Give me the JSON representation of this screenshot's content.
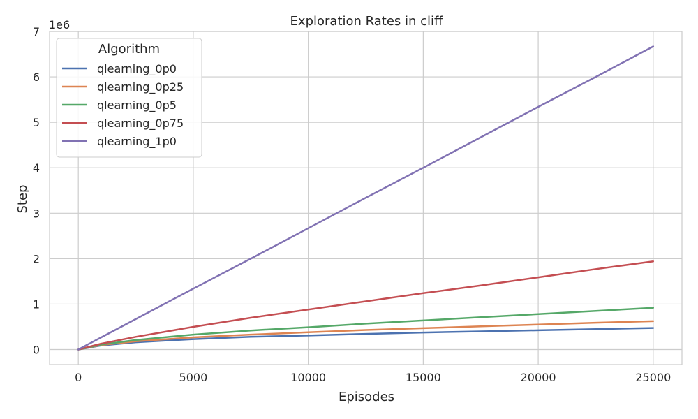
{
  "chart_data": {
    "type": "line",
    "title": "Exploration Rates in cliff",
    "xlabel": "Episodes",
    "ylabel": "Step",
    "y_offset_text": "1e6",
    "xlim": [
      -1250,
      26250
    ],
    "ylim": [
      -0.33,
      7.0
    ],
    "x_ticks": [
      0,
      5000,
      10000,
      15000,
      20000,
      25000
    ],
    "x_tick_labels": [
      "0",
      "5000",
      "10000",
      "15000",
      "20000",
      "25000"
    ],
    "y_ticks": [
      0,
      1,
      2,
      3,
      4,
      5,
      6,
      7
    ],
    "y_tick_labels": [
      "0",
      "1",
      "2",
      "3",
      "4",
      "5",
      "6",
      "7"
    ],
    "grid": true,
    "legend": {
      "title": "Algorithm",
      "placement": "top-left"
    },
    "x": [
      0,
      1000,
      2500,
      5000,
      7500,
      10000,
      12500,
      15000,
      17500,
      20000,
      22500,
      25000
    ],
    "series": [
      {
        "name": "qlearning_0p0",
        "color": "#4c72b0",
        "values": [
          0,
          0.09,
          0.16,
          0.23,
          0.28,
          0.31,
          0.345,
          0.375,
          0.4,
          0.425,
          0.45,
          0.475
        ]
      },
      {
        "name": "qlearning_0p25",
        "color": "#dd8452",
        "values": [
          0,
          0.1,
          0.18,
          0.27,
          0.33,
          0.38,
          0.43,
          0.47,
          0.51,
          0.55,
          0.59,
          0.625
        ]
      },
      {
        "name": "qlearning_0p5",
        "color": "#55a868",
        "values": [
          0,
          0.11,
          0.21,
          0.33,
          0.42,
          0.49,
          0.57,
          0.64,
          0.71,
          0.78,
          0.85,
          0.92
        ]
      },
      {
        "name": "qlearning_0p75",
        "color": "#c44e52",
        "values": [
          0,
          0.13,
          0.28,
          0.5,
          0.7,
          0.88,
          1.06,
          1.24,
          1.41,
          1.59,
          1.77,
          1.94
        ]
      },
      {
        "name": "qlearning_1p0",
        "color": "#8172b3",
        "values": [
          0,
          0.27,
          0.67,
          1.34,
          2.0,
          2.67,
          3.34,
          4.0,
          4.67,
          5.34,
          6.0,
          6.67
        ]
      }
    ]
  }
}
